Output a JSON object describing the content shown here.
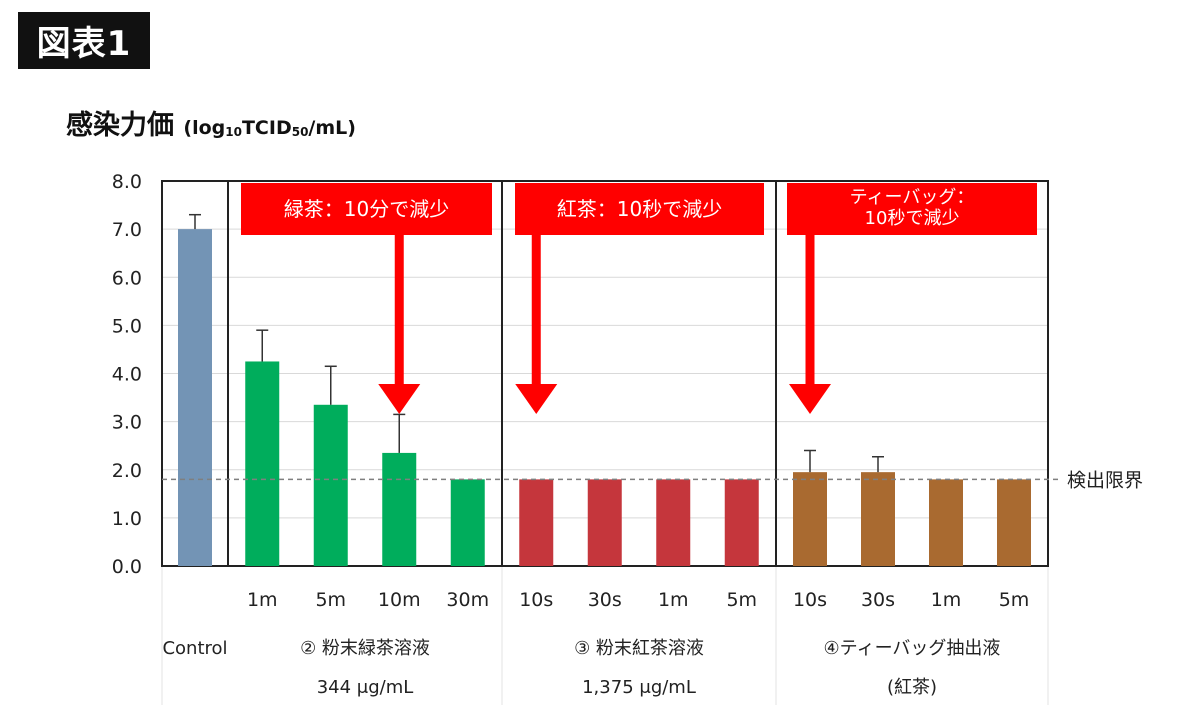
{
  "figure_label": "図表1",
  "y_title": {
    "main": "感染力価",
    "unit_open": "(log",
    "unit_sub1": "10",
    "unit_mid": "TCID",
    "unit_sub2": "50",
    "unit_close": "/mL)"
  },
  "chart_data": {
    "type": "bar",
    "ylim": [
      0,
      8
    ],
    "yticks": [
      "0.0",
      "1.0",
      "2.0",
      "3.0",
      "4.0",
      "5.0",
      "6.0",
      "7.0",
      "8.0"
    ],
    "grid": true,
    "detection_limit": {
      "value": 1.8,
      "label": "検出限界"
    },
    "groups": [
      {
        "label": "Control",
        "label_line2": "",
        "color": "#7394b5",
        "bars": [
          {
            "x": "",
            "value": 7.0,
            "error": 0.3
          }
        ],
        "callout": null
      },
      {
        "label": "② 粉末緑茶溶液",
        "label_line2": "344 μg/mL",
        "color": "#00ad5c",
        "bars": [
          {
            "x": "1m",
            "value": 4.25,
            "error": 0.65
          },
          {
            "x": "5m",
            "value": 3.35,
            "error": 0.8
          },
          {
            "x": "10m",
            "value": 2.35,
            "error": 0.8
          },
          {
            "x": "30m",
            "value": 1.8,
            "error": 0
          }
        ],
        "callout": {
          "lines": [
            "緑茶：10分で減少"
          ],
          "target_bar": 2
        }
      },
      {
        "label": "③ 粉末紅茶溶液",
        "label_line2": "1,375 μg/mL",
        "color": "#c5363c",
        "bars": [
          {
            "x": "10s",
            "value": 1.8,
            "error": 0
          },
          {
            "x": "30s",
            "value": 1.8,
            "error": 0
          },
          {
            "x": "1m",
            "value": 1.8,
            "error": 0
          },
          {
            "x": "5m",
            "value": 1.8,
            "error": 0
          }
        ],
        "callout": {
          "lines": [
            "紅茶：10秒で減少"
          ],
          "target_bar": 0
        }
      },
      {
        "label": "④ティーバッグ抽出液",
        "label_line2": "(紅茶)",
        "color": "#a96a30",
        "bars": [
          {
            "x": "10s",
            "value": 1.95,
            "error": 0.45
          },
          {
            "x": "30s",
            "value": 1.95,
            "error": 0.32
          },
          {
            "x": "1m",
            "value": 1.8,
            "error": 0
          },
          {
            "x": "5m",
            "value": 1.8,
            "error": 0
          }
        ],
        "callout": {
          "lines": [
            "ティーバッグ：",
            "10秒で減少"
          ],
          "target_bar": 0
        }
      }
    ],
    "colors": {
      "callout": "#ff0000",
      "grid": "#d9d9d9",
      "axis": "#222222",
      "limit_line": "#7f7f7f"
    }
  }
}
